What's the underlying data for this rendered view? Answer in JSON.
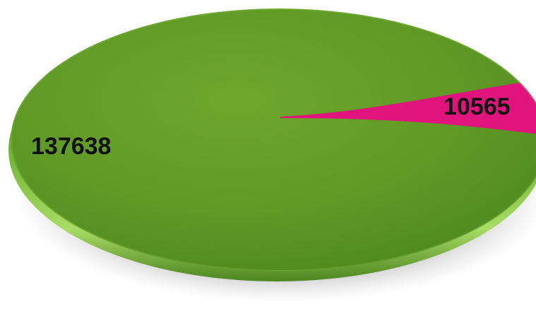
{
  "chart_data": {
    "type": "pie",
    "title": "",
    "slices": [
      {
        "value": 137638,
        "label": "137638",
        "color": "#5f9a28"
      },
      {
        "value": 10565,
        "label": "10565",
        "color": "#e0147c"
      }
    ],
    "legend": "none",
    "style": "3d-ellipse"
  }
}
